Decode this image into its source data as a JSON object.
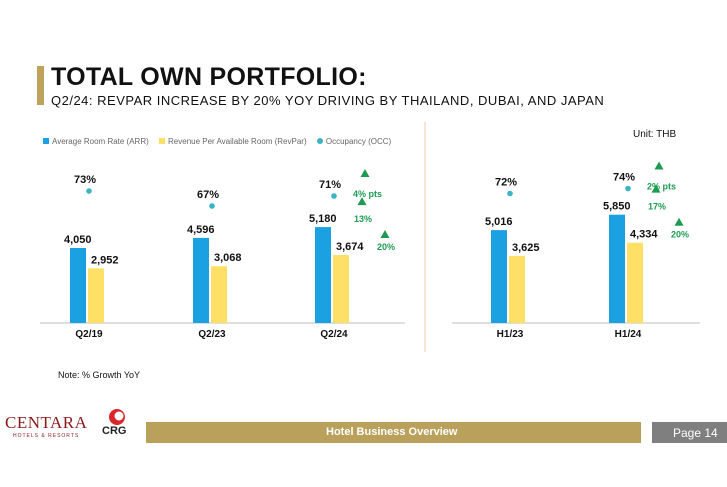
{
  "header": {
    "title": "TOTAL OWN PORTFOLIO:",
    "subtitle": "Q2/24: REVPAR INCREASE BY 20% YOY DRIVING BY THAILAND, DUBAI, AND JAPAN"
  },
  "legend": {
    "arr": "Average Room Rate (ARR)",
    "revpar": "Revenue Per Available Room (RevPar)",
    "occ": "Occupancy (OCC)"
  },
  "unit": "Unit: THB",
  "note": "Note: % Growth YoY",
  "footer": {
    "logo": "CENTARA",
    "logo_sub": "HOTELS & RESORTS",
    "logo2": "CRG",
    "section": "Hotel Business Overview",
    "page": "Page 14"
  },
  "colors": {
    "arr": "#1ba1e2",
    "revpar": "#ffe066",
    "occ": "#3bb3c3",
    "growth": "#1e9b52",
    "accent": "#b9a15c"
  },
  "chart_data": [
    {
      "type": "bar",
      "categories": [
        "Q2/19",
        "Q2/23",
        "Q2/24"
      ],
      "series": [
        {
          "name": "Average Room Rate (ARR)",
          "values": [
            4050,
            4596,
            5180
          ],
          "labels": [
            "4,050",
            "4,596",
            "5,180"
          ]
        },
        {
          "name": "Revenue Per Available Room (RevPar)",
          "values": [
            2952,
            3068,
            3674
          ],
          "labels": [
            "2,952",
            "3,068",
            "3,674"
          ]
        },
        {
          "name": "Occupancy (OCC)",
          "values": [
            73,
            67,
            71
          ],
          "labels": [
            "73%",
            "67%",
            "71%"
          ]
        }
      ],
      "growth": {
        "category": "Q2/24",
        "arr": "13%",
        "revpar": "20%",
        "occ": "4% pts"
      }
    },
    {
      "type": "bar",
      "categories": [
        "H1/23",
        "H1/24"
      ],
      "series": [
        {
          "name": "Average Room Rate (ARR)",
          "values": [
            5016,
            5850
          ],
          "labels": [
            "5,016",
            "5,850"
          ]
        },
        {
          "name": "Revenue Per Available Room (RevPar)",
          "values": [
            3625,
            4334
          ],
          "labels": [
            "3,625",
            "4,334"
          ]
        },
        {
          "name": "Occupancy (OCC)",
          "values": [
            72,
            74
          ],
          "labels": [
            "72%",
            "74%"
          ]
        }
      ],
      "growth": {
        "category": "H1/24",
        "arr": "17%",
        "revpar": "20%",
        "occ": "2% pts"
      }
    }
  ]
}
